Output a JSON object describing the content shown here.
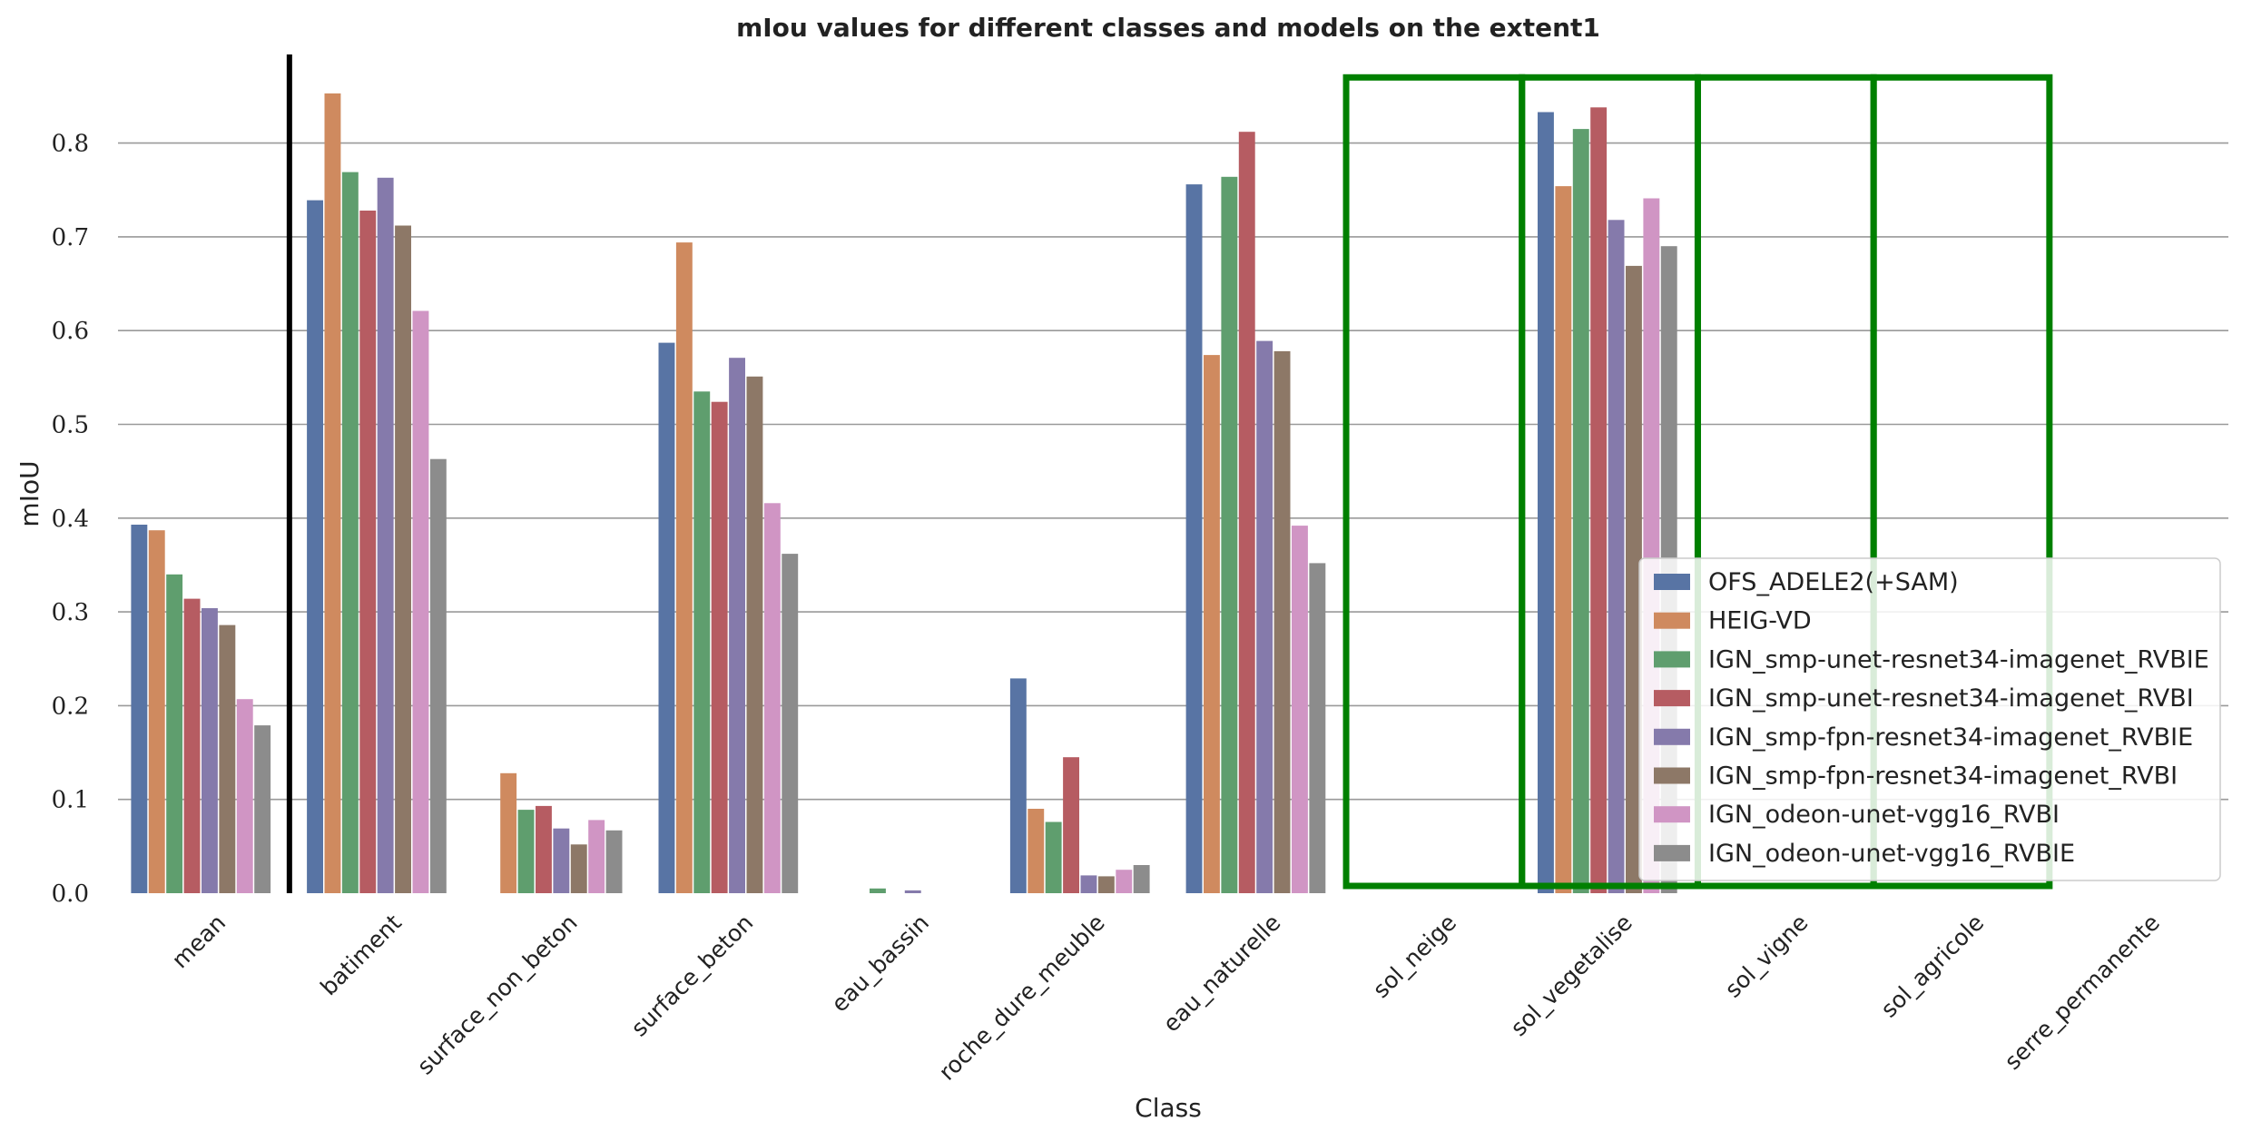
{
  "chart_data": {
    "type": "bar",
    "title": "mIou values for different classes and models on the extent1",
    "xlabel": "Class",
    "ylabel": "mIoU",
    "ylim": [
      0,
      0.9
    ],
    "yticks": [
      "0.0",
      "0.1",
      "0.2",
      "0.3",
      "0.4",
      "0.5",
      "0.6",
      "0.7",
      "0.8"
    ],
    "grid": "horizontal",
    "legend_position": "lower-right",
    "categories": [
      "mean",
      "batiment",
      "surface_non_beton",
      "surface_beton",
      "eau_bassin",
      "roche_dure_meuble",
      "eau_naturelle",
      "sol_neige",
      "sol_vegetalise",
      "sol_vigne",
      "sol_agricole",
      "serre_permanente"
    ],
    "series": [
      {
        "name": "OFS_ADELE2(+SAM)",
        "color": "#5874a4",
        "values": [
          0.393,
          0.739,
          0.0,
          0.587,
          0.0,
          0.229,
          0.756,
          0.0,
          0.833,
          0.0,
          0.0,
          0.0
        ]
      },
      {
        "name": "HEIG-VD",
        "color": "#cf8a5f",
        "values": [
          0.387,
          0.853,
          0.128,
          0.694,
          0.0,
          0.09,
          0.574,
          0.0,
          0.754,
          0.0,
          0.0,
          0.0
        ]
      },
      {
        "name": "IGN_smp-unet-resnet34-imagenet_RVBIE",
        "color": "#5f9e6e",
        "values": [
          0.34,
          0.769,
          0.089,
          0.535,
          0.005,
          0.076,
          0.764,
          0.0,
          0.815,
          0.0,
          0.0,
          0.0
        ]
      },
      {
        "name": "IGN_smp-unet-resnet34-imagenet_RVBI",
        "color": "#b65c62",
        "values": [
          0.314,
          0.728,
          0.093,
          0.524,
          0.0,
          0.145,
          0.812,
          0.0,
          0.838,
          0.0,
          0.0,
          0.0
        ]
      },
      {
        "name": "IGN_smp-fpn-resnet34-imagenet_RVBIE",
        "color": "#857aab",
        "values": [
          0.304,
          0.763,
          0.069,
          0.571,
          0.003,
          0.019,
          0.589,
          0.0,
          0.718,
          0.0,
          0.0,
          0.0
        ]
      },
      {
        "name": "IGN_smp-fpn-resnet34-imagenet_RVBI",
        "color": "#8d7867",
        "values": [
          0.286,
          0.712,
          0.052,
          0.551,
          0.0,
          0.018,
          0.578,
          0.0,
          0.669,
          0.0,
          0.0,
          0.0
        ]
      },
      {
        "name": "IGN_odeon-unet-vgg16_RVBI",
        "color": "#d095c4",
        "values": [
          0.207,
          0.621,
          0.078,
          0.416,
          0.0,
          0.025,
          0.392,
          0.0,
          0.741,
          0.0,
          0.0,
          0.0
        ]
      },
      {
        "name": "IGN_odeon-unet-vgg16_RVBIE",
        "color": "#8c8c8c",
        "values": [
          0.179,
          0.463,
          0.067,
          0.362,
          0.0,
          0.03,
          0.352,
          0.0,
          0.69,
          0.0,
          0.0,
          0.0
        ]
      }
    ],
    "annotations": [
      {
        "type": "vertical-line",
        "between": [
          "mean",
          "batiment"
        ],
        "color": "#000000"
      },
      {
        "type": "boxes",
        "categories": [
          "sol_neige",
          "sol_vegetalise",
          "sol_vigne",
          "sol_agricole"
        ],
        "ymax": 0.87,
        "color": "#008000"
      }
    ]
  }
}
